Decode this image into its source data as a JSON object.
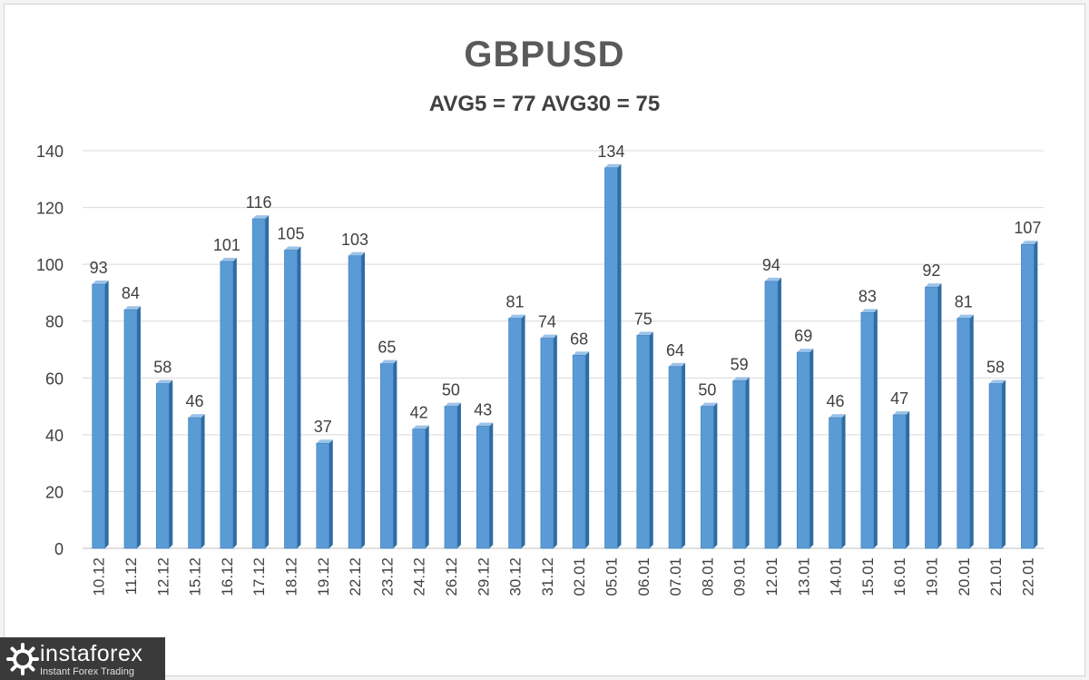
{
  "chart_data": {
    "type": "bar",
    "title": "GBPUSD",
    "subtitle": "AVG5 = 77 AVG30 = 75",
    "xlabel": "",
    "ylabel": "",
    "ylim": [
      0,
      140
    ],
    "yticks": [
      0,
      20,
      40,
      60,
      80,
      100,
      120,
      140
    ],
    "grid": true,
    "legend": "none",
    "categories": [
      "10.12",
      "11.12",
      "12.12",
      "15.12",
      "16.12",
      "17.12",
      "18.12",
      "19.12",
      "22.12",
      "23.12",
      "24.12",
      "26.12",
      "29.12",
      "30.12",
      "31.12",
      "02.01",
      "05.01",
      "06.01",
      "07.01",
      "08.01",
      "09.01",
      "12.01",
      "13.01",
      "14.01",
      "15.01",
      "16.01",
      "19.01",
      "20.01",
      "21.01",
      "22.01"
    ],
    "values": [
      93,
      84,
      58,
      46,
      101,
      116,
      105,
      37,
      103,
      65,
      42,
      50,
      43,
      81,
      74,
      68,
      134,
      75,
      64,
      50,
      59,
      94,
      69,
      46,
      83,
      47,
      92,
      81,
      58,
      107
    ],
    "bar_color": "#5b9bd5",
    "bar_color_dark": "#2e6ca4",
    "grid_color": "#d9d9d9"
  },
  "watermark": {
    "brand": "instaforex",
    "tagline": "Instant Forex Trading"
  }
}
